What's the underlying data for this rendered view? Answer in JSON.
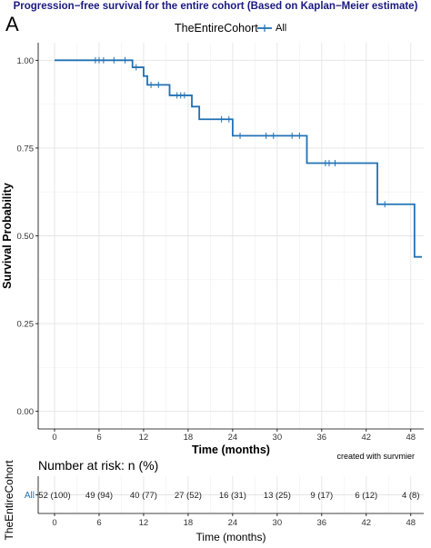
{
  "figure": {
    "panel_label": "A",
    "title": "Progression−free survival for the entire cohort (Based on Kaplan−Meier estimate)",
    "caption": "created with survmier"
  },
  "legend": {
    "title": "TheEntireCohort",
    "label": "All"
  },
  "colors": {
    "curve": "#2171b5",
    "grid_major": "#e4e4e4",
    "grid_minor": "#f1f1f1",
    "title": "#1a1a80"
  },
  "chart_data": {
    "type": "line",
    "title": "Progression−free survival for the entire cohort (Based on Kaplan−Meier estimate)",
    "xlabel": "Time (months)",
    "ylabel": "Survival Probability",
    "xlim": [
      0,
      49.5
    ],
    "ylim": [
      0,
      1
    ],
    "x_ticks": [
      0,
      6,
      12,
      18,
      24,
      30,
      36,
      42,
      48
    ],
    "y_ticks": [
      0,
      0.25,
      0.5,
      0.75,
      1
    ],
    "y_tick_labels": [
      "0.00",
      "0.25",
      "0.50",
      "0.75",
      "1.00"
    ],
    "grid": true,
    "legend_position": "top",
    "series": [
      {
        "name": "All",
        "step_points": [
          {
            "x": 0,
            "y": 1.0
          },
          {
            "x": 10.5,
            "y": 0.98
          },
          {
            "x": 12.0,
            "y": 0.955
          },
          {
            "x": 12.5,
            "y": 0.93
          },
          {
            "x": 15.5,
            "y": 0.9
          },
          {
            "x": 18.5,
            "y": 0.868
          },
          {
            "x": 19.5,
            "y": 0.832
          },
          {
            "x": 24.0,
            "y": 0.785
          },
          {
            "x": 34.0,
            "y": 0.707
          },
          {
            "x": 43.5,
            "y": 0.59
          },
          {
            "x": 48.5,
            "y": 0.44
          },
          {
            "x": 49.5,
            "y": 0.44
          }
        ],
        "censored": [
          {
            "x": 5.5,
            "y": 1.0
          },
          {
            "x": 6.0,
            "y": 1.0
          },
          {
            "x": 6.6,
            "y": 1.0
          },
          {
            "x": 8.0,
            "y": 1.0
          },
          {
            "x": 9.5,
            "y": 1.0
          },
          {
            "x": 11.0,
            "y": 0.98
          },
          {
            "x": 13.0,
            "y": 0.93
          },
          {
            "x": 14.0,
            "y": 0.93
          },
          {
            "x": 16.5,
            "y": 0.9
          },
          {
            "x": 17.0,
            "y": 0.9
          },
          {
            "x": 17.5,
            "y": 0.9
          },
          {
            "x": 22.5,
            "y": 0.832
          },
          {
            "x": 23.5,
            "y": 0.832
          },
          {
            "x": 25.0,
            "y": 0.785
          },
          {
            "x": 28.5,
            "y": 0.785
          },
          {
            "x": 29.5,
            "y": 0.785
          },
          {
            "x": 32.0,
            "y": 0.785
          },
          {
            "x": 33.0,
            "y": 0.785
          },
          {
            "x": 36.5,
            "y": 0.707
          },
          {
            "x": 37.0,
            "y": 0.707
          },
          {
            "x": 37.8,
            "y": 0.707
          },
          {
            "x": 44.5,
            "y": 0.59
          }
        ]
      }
    ],
    "risk_table": {
      "title": "Number at risk: n (%)",
      "ylabel": "TheEntireCohort",
      "strata_label": "All",
      "xlabel": "Time (months)",
      "times": [
        0,
        6,
        12,
        18,
        24,
        30,
        36,
        42,
        48
      ],
      "cells": [
        "52 (100)",
        "49 (94)",
        "40 (77)",
        "27 (52)",
        "16 (31)",
        "13 (25)",
        "9 (17)",
        "6 (12)",
        "4 (8)"
      ]
    }
  }
}
